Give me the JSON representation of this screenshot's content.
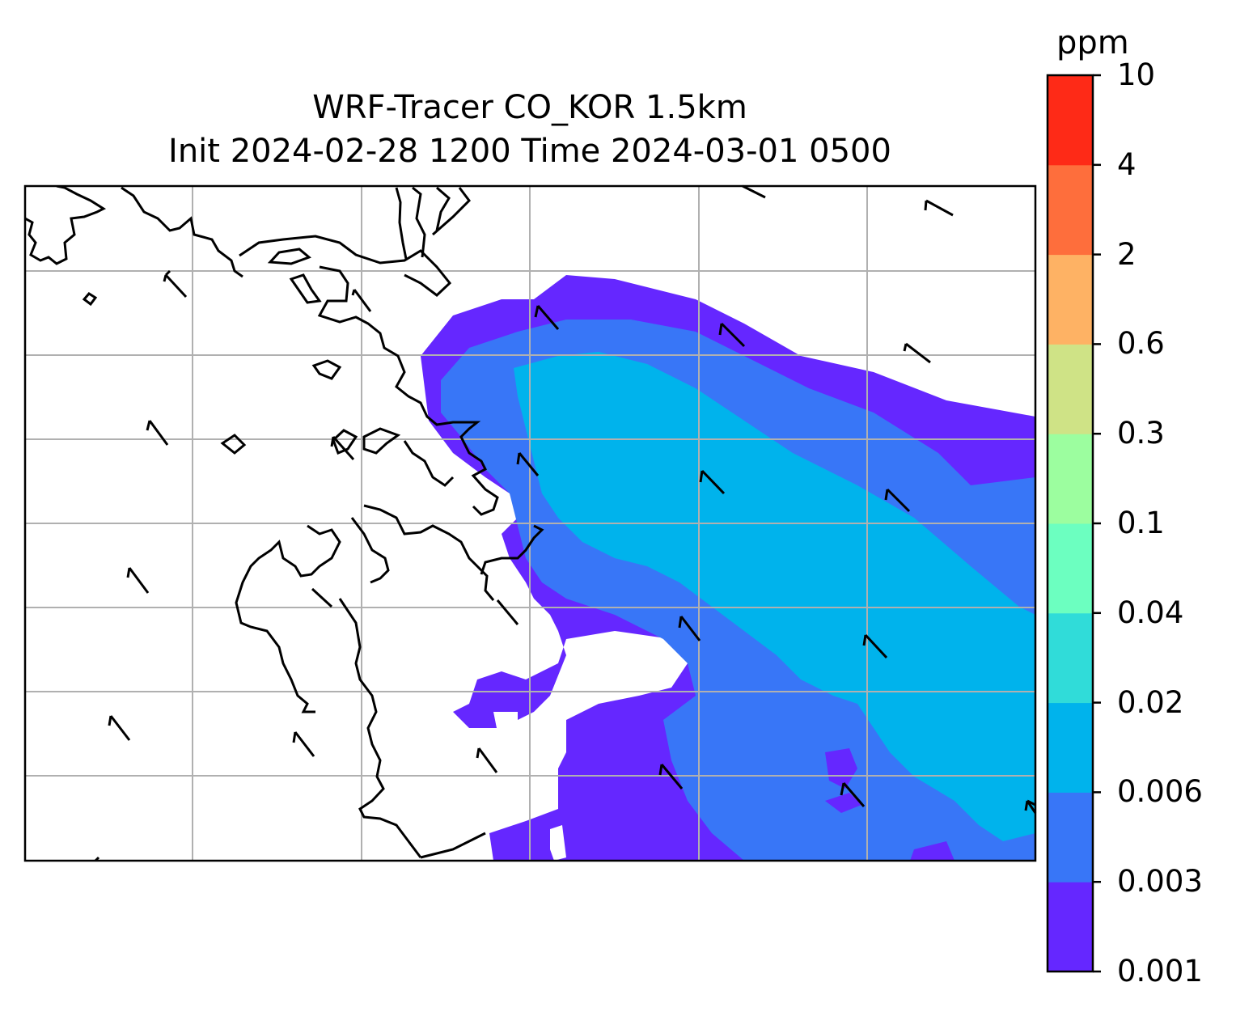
{
  "title_line1": "WRF-Tracer CO_KOR 1.5km",
  "title_line2": "Init 2024-02-28 1200 Time 2024-03-01 0500",
  "colorbar": {
    "unit": "ppm",
    "levels": [
      "0.001",
      "0.003",
      "0.006",
      "0.02",
      "0.04",
      "0.1",
      "0.3",
      "0.6",
      "2",
      "4",
      "10"
    ],
    "colors": [
      "#6527ff",
      "#3876f7",
      "#00b3ec",
      "#30dcd9",
      "#6cffc0",
      "#9cfe9f",
      "#cfe386",
      "#feb264",
      "#fe6e3c",
      "#fe2a17"
    ]
  },
  "map": {
    "gridlines": true,
    "land_outline_color": "#000000",
    "wind_barbs": "black"
  }
}
